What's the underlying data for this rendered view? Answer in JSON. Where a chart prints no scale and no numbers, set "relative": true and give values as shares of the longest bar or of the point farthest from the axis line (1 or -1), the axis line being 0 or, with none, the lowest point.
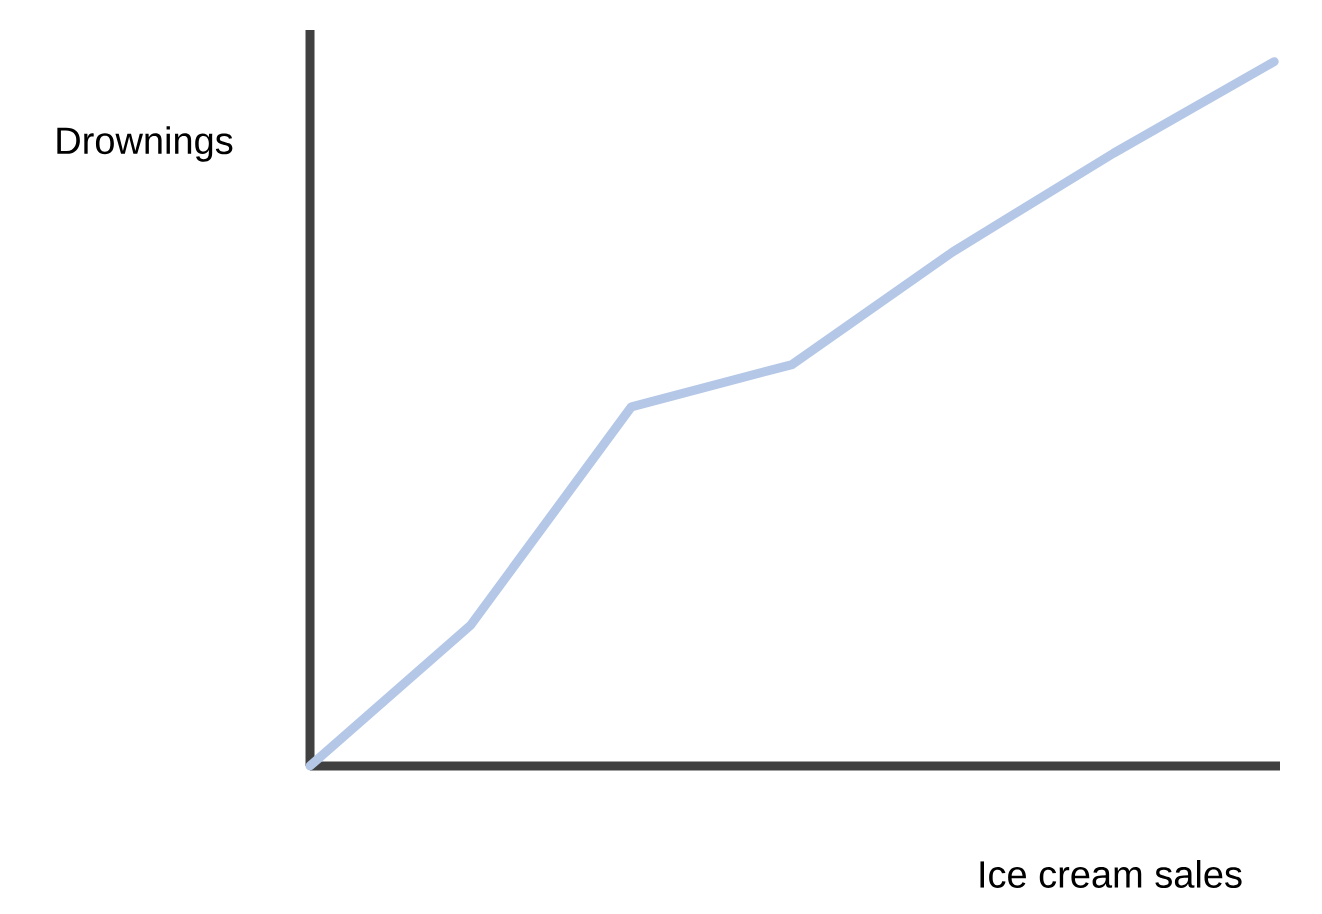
{
  "chart_data": {
    "type": "line",
    "relative": true,
    "xlabel": "Ice cream sales",
    "ylabel": "Drownings",
    "categories": [
      null,
      null,
      null,
      null,
      null,
      null,
      null
    ],
    "values": [
      0,
      0.2,
      0.51,
      0.57,
      0.73,
      0.87,
      1.0
    ],
    "color": "#b4c7e7"
  }
}
